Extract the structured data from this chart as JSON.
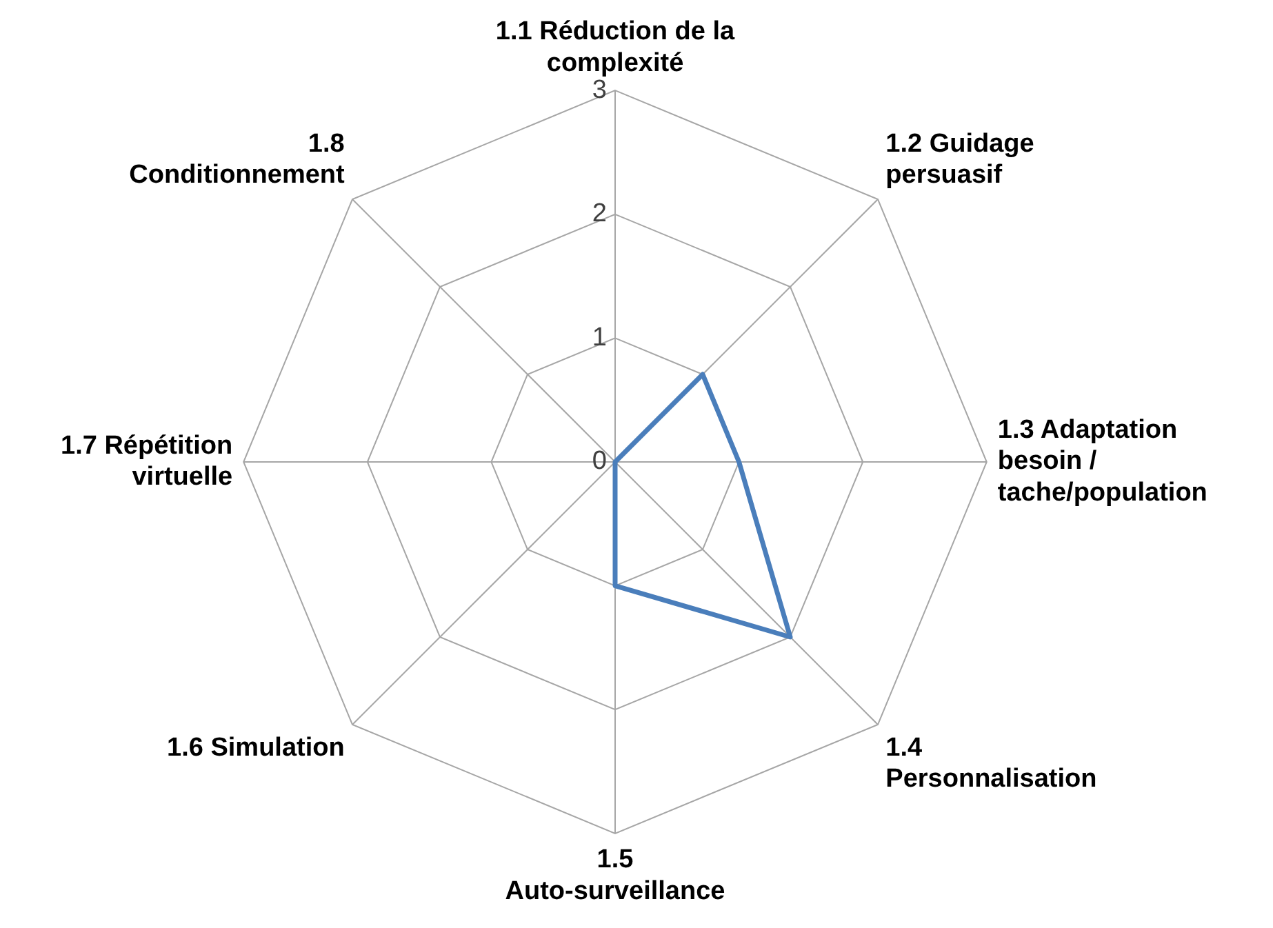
{
  "chart_data": {
    "type": "radar",
    "categories": [
      "1.1 Réduction de la complexité",
      "1.2 Guidage persuasif",
      "1.3 Adaptation besoin / tache/population",
      "1.4 Personnalisation",
      "1.5 Auto-surveillance",
      "1.6 Simulation",
      "1.7 Répétition virtuelle",
      "1.8 Conditionnement"
    ],
    "series": [
      {
        "color": "#4a7ebb",
        "values": [
          0,
          1,
          1,
          2,
          1,
          0,
          0,
          0
        ]
      }
    ],
    "ylim": [
      0,
      3
    ],
    "yticks": [
      0,
      1,
      2,
      3
    ],
    "grid": true,
    "legend": false,
    "marker": "none"
  }
}
